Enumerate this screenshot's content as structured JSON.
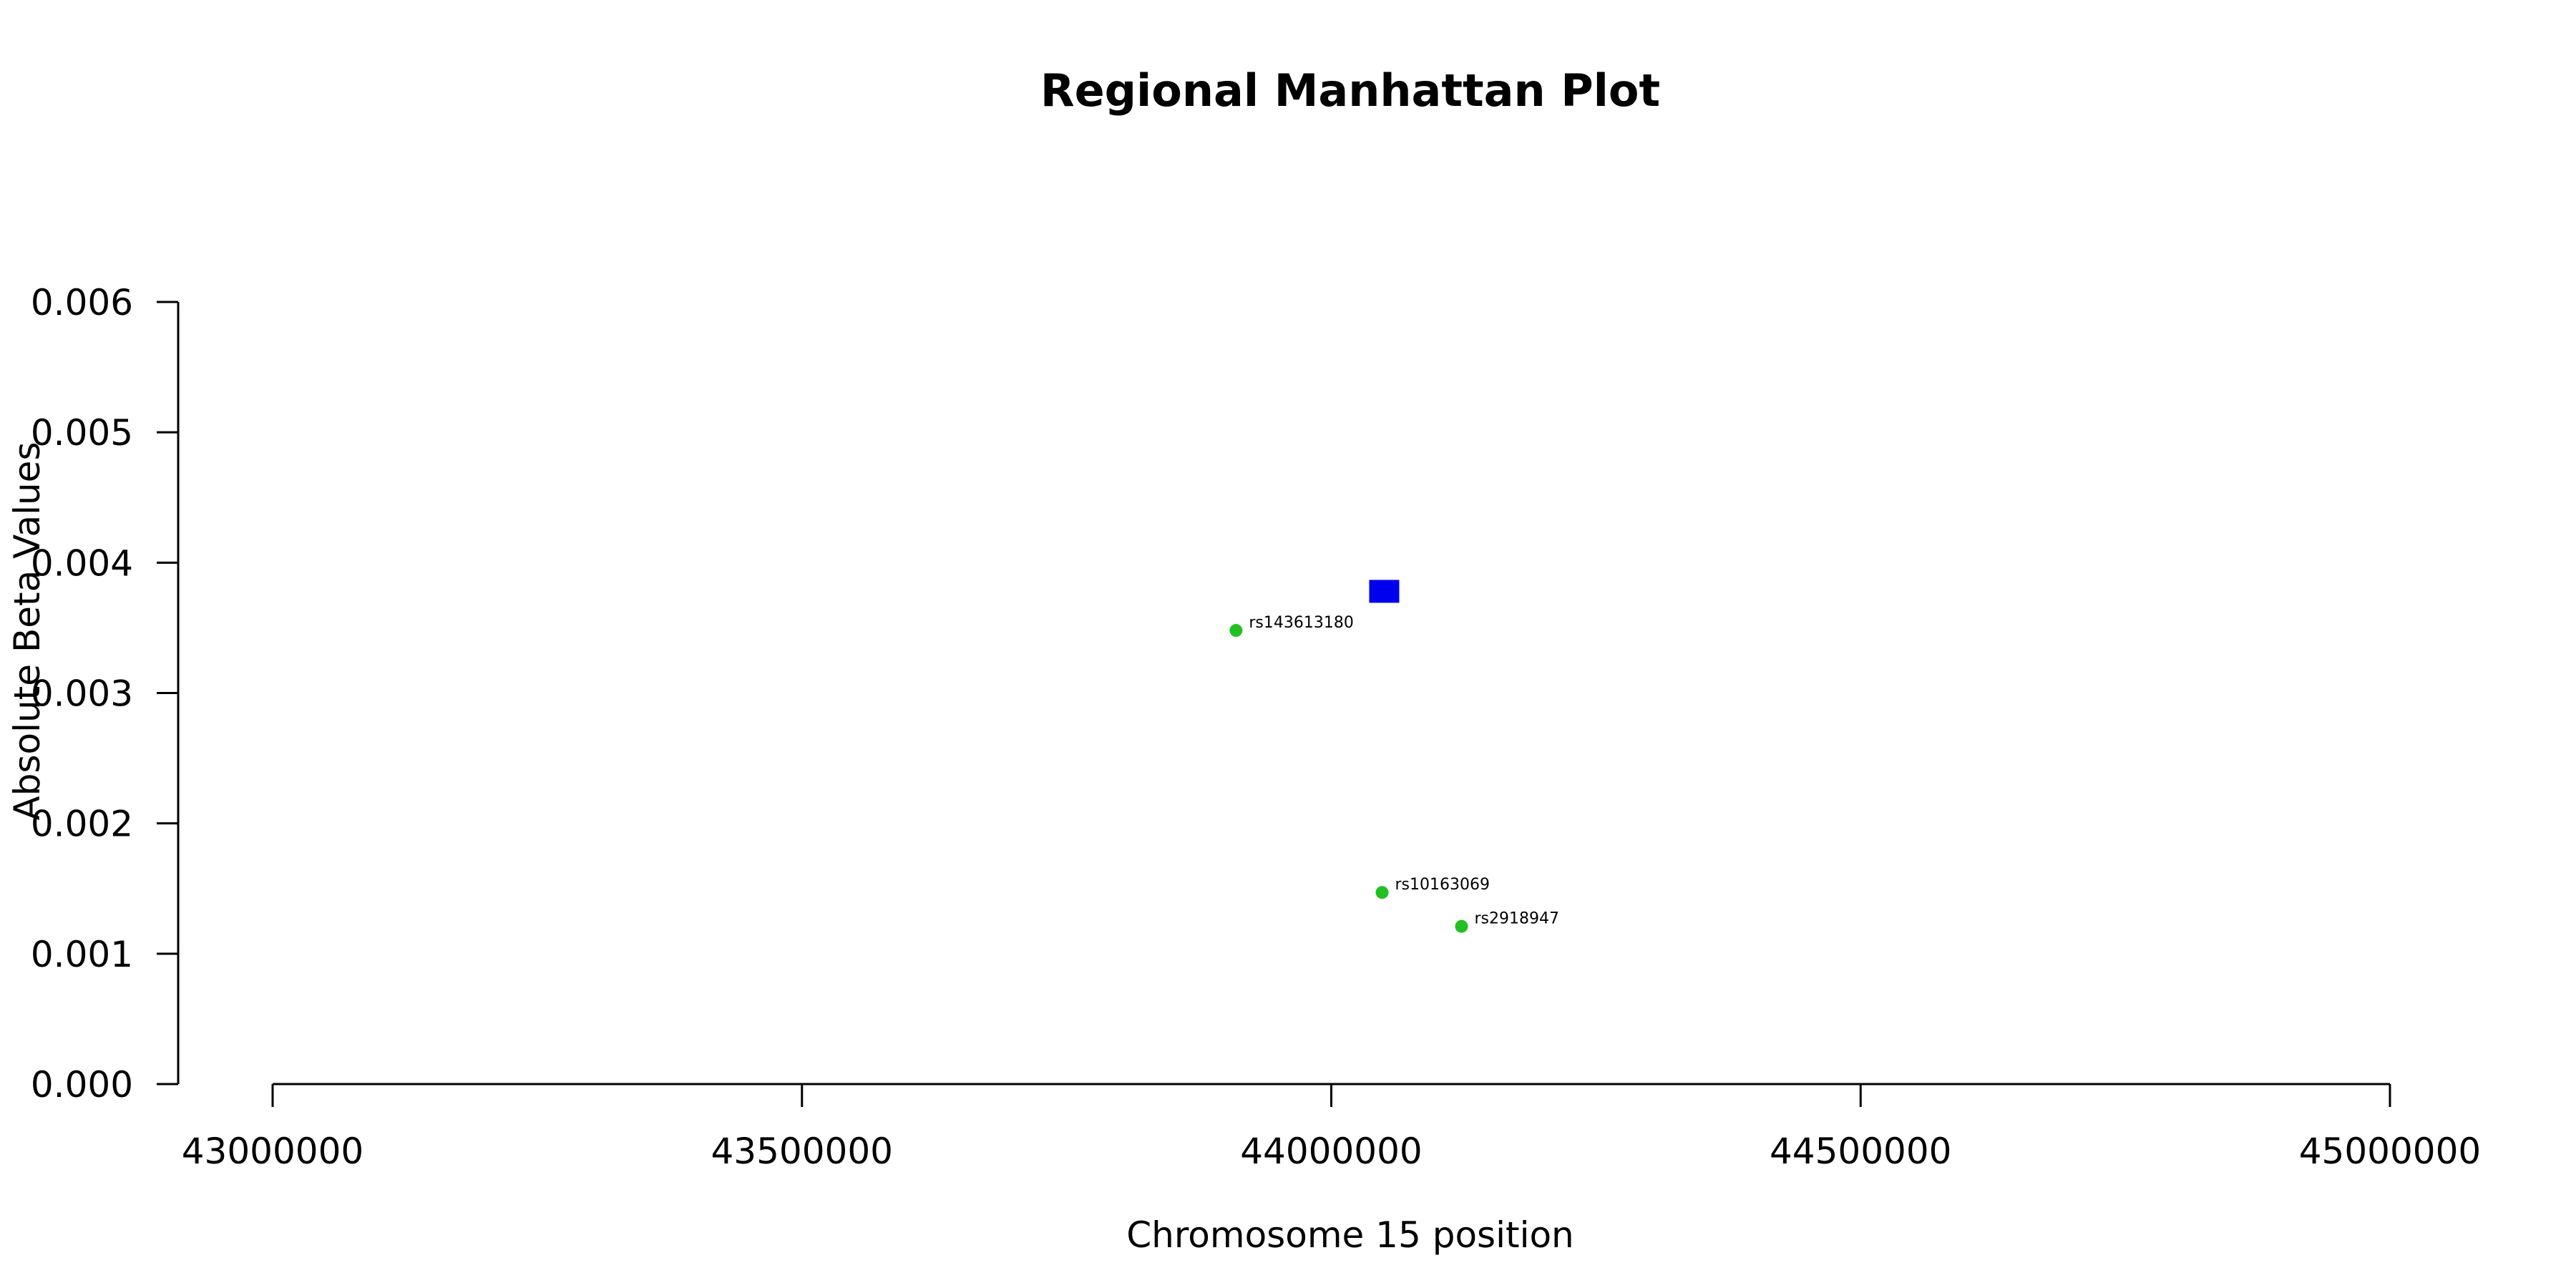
{
  "chart_data": {
    "type": "scatter",
    "title": "Regional Manhattan Plot",
    "xlabel": "Chromosome 15 position",
    "ylabel": "Absolute Beta Values",
    "xlim": [
      43000000,
      45000000
    ],
    "ylim": [
      0,
      0.006
    ],
    "x_ticks": [
      43000000,
      43500000,
      44000000,
      44500000,
      45000000
    ],
    "x_tick_labels": [
      "43000000",
      "43500000",
      "44000000",
      "44500000",
      "45000000"
    ],
    "y_ticks": [
      0,
      0.001,
      0.002,
      0.003,
      0.004,
      0.005,
      0.006
    ],
    "y_tick_labels": [
      "0.000",
      "0.001",
      "0.002",
      "0.003",
      "0.004",
      "0.005",
      "0.006"
    ],
    "grid": false,
    "points": [
      {
        "x": 44050000,
        "y": 0.00378,
        "label": "",
        "color": "#0000ee",
        "shape": "square"
      },
      {
        "x": 43910000,
        "y": 0.00348,
        "label": "rs143613180",
        "color": "#22c022",
        "shape": "circle"
      },
      {
        "x": 44048000,
        "y": 0.00147,
        "label": "rs10163069",
        "color": "#22c022",
        "shape": "circle"
      },
      {
        "x": 44123000,
        "y": 0.00121,
        "label": "rs2918947",
        "color": "#22c022",
        "shape": "circle"
      }
    ]
  }
}
